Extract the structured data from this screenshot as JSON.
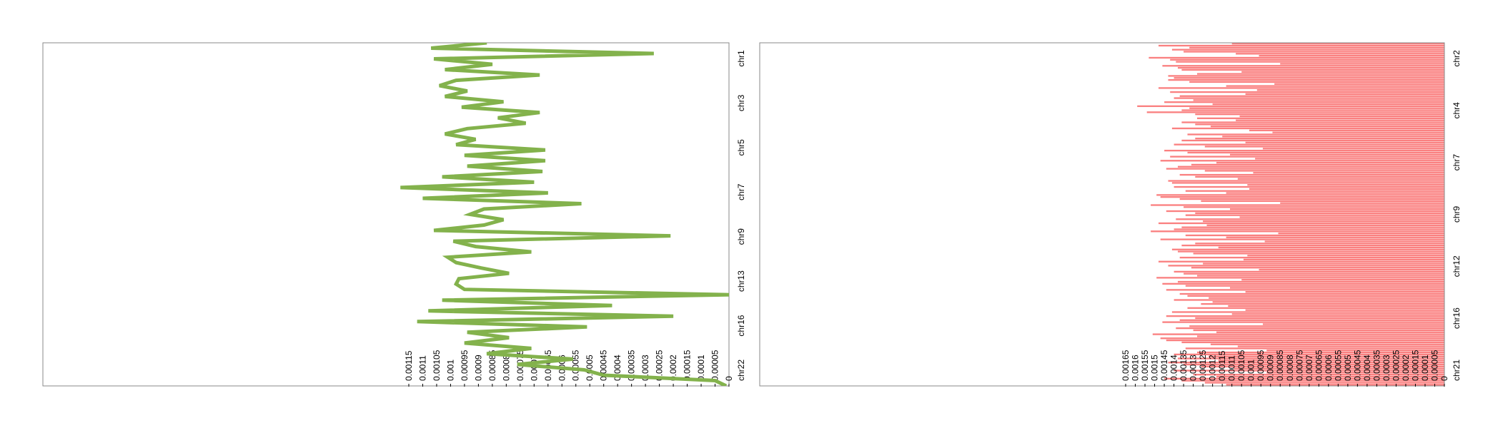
{
  "chart_data": [
    {
      "type": "line",
      "color": "#83b24c",
      "orientation": "vertical",
      "value_axis": {
        "range": [
          0,
          0.00115
        ],
        "ticks": [
          "0.00115",
          "0.0011",
          "0.00105",
          "0.001",
          "0.00095",
          "0.0009",
          "0.00085",
          "0.0008",
          "0.00075",
          "0.0007",
          "0.00065",
          "0.0006",
          "0.00055",
          "0.0005",
          "0.00045",
          "0.0004",
          "0.00035",
          "0.0003",
          "0.00025",
          "0.0002",
          "0.00015",
          "0.0001",
          "0.00005",
          "0"
        ]
      },
      "category_labels": [
        "chr1",
        "chr3",
        "chr5",
        "chr7",
        "chr9",
        "chr13",
        "chr16",
        "chr22"
      ],
      "values": [
        0.00087,
        0.00107,
        0.00027,
        0.00106,
        0.00085,
        0.00102,
        0.00068,
        0.00098,
        0.00104,
        0.00094,
        0.00102,
        0.00081,
        0.00096,
        0.00068,
        0.00083,
        0.00073,
        0.00094,
        0.00102,
        0.00091,
        0.00098,
        0.00066,
        0.00095,
        0.00066,
        0.00094,
        0.00067,
        0.00103,
        0.0007,
        0.00118,
        0.00065,
        0.0011,
        0.00053,
        0.00088,
        0.00093,
        0.00081,
        0.00088,
        0.00106,
        0.00021,
        0.00099,
        0.00091,
        0.00071,
        0.00101,
        0.00098,
        0.00089,
        0.00079,
        0.00097,
        0.00098,
        0.00095,
        0,
        0.00103,
        0.00042,
        0.00108,
        0.0002,
        0.00112,
        0.00051,
        0.00094,
        0.00079,
        0.00095,
        0.00071,
        0.00087,
        0.00056,
        0.00076,
        0.00052,
        0.00045,
        5e-05,
        1e-05
      ]
    },
    {
      "type": "bar",
      "color": "#fa8080",
      "orientation": "horizontal",
      "value_axis": {
        "range": [
          0,
          0.00165
        ],
        "ticks": [
          "0.00165",
          "0.0016",
          "0.00155",
          "0.0015",
          "0.00145",
          "0.0014",
          "0.00135",
          "0.0013",
          "0.00125",
          "0.0012",
          "0.00115",
          "0.0011",
          "0.00105",
          "0.001",
          "0.00095",
          "0.0009",
          "0.00085",
          "0.0008",
          "0.00075",
          "0.0007",
          "0.00065",
          "0.0006",
          "0.00055",
          "0.0005",
          "0.00045",
          "0.0004",
          "0.00035",
          "0.0003",
          "0.00025",
          "0.0002",
          "0.00015",
          "0.0001",
          "0.00005",
          "0"
        ]
      },
      "category_labels": [
        "chr2",
        "chr4",
        "chr7",
        "chr9",
        "chr12",
        "chr16",
        "chr21"
      ],
      "values": [
        0.0011,
        0.00148,
        0.00132,
        0.00141,
        0.00135,
        0.00108,
        0.00096,
        0.00153,
        0.00142,
        0.00139,
        0.00085,
        0.00146,
        0.00138,
        0.00136,
        0.00105,
        0.00128,
        0.00143,
        0.0014,
        0.00143,
        0.00132,
        0.00088,
        0.00113,
        0.00148,
        0.00097,
        0.00142,
        0.00103,
        0.00137,
        0.0014,
        0.0013,
        0.00145,
        0.0012,
        0.00159,
        0.00132,
        0.00136,
        0.00154,
        0.00129,
        0.00106,
        0.00128,
        0.00108,
        0.00136,
        0.00129,
        0.00121,
        0.00141,
        0.00101,
        0.00089,
        0.00133,
        0.00115,
        0.00129,
        0.00136,
        0.00103,
        0.0014,
        0.00124,
        0.00094,
        0.00145,
        0.00133,
        0.00111,
        0.00142,
        0.00098,
        0.00147,
        0.00118,
        0.00131,
        0.00138,
        0.00144,
        0.00124,
        0.00099,
        0.00137,
        0.00129,
        0.00107,
        0.00143,
        0.00141,
        0.00102,
        0.0014,
        0.00101,
        0.00134,
        0.00113,
        0.00149,
        0.00147,
        0.00137,
        0.00126,
        0.00085,
        0.00152,
        0.00135,
        0.00111,
        0.00144,
        0.00129,
        0.00134,
        0.00106,
        0.00139,
        0.00125,
        0.00148,
        0.00123,
        0.00136,
        0.0014,
        0.00152,
        0.00086,
        0.00134,
        0.00113,
        0.00147,
        0.00093,
        0.00129,
        0.00136,
        0.00117,
        0.00141,
        0.00138,
        0.0013,
        0.00102,
        0.00137,
        0.00104,
        0.00148,
        0.00125,
        0.00143,
        0.00131,
        0.00096,
        0.0014,
        0.00135,
        0.00128,
        0.00149,
        0.00105,
        0.00138,
        0.00146,
        0.00134,
        0.00111,
        0.00144,
        0.00103,
        0.00137,
        0.00133,
        0.00122,
        0.0014,
        0.0012,
        0.00126,
        0.00112,
        0.00133,
        0.00103,
        0.00141,
        0.0011,
        0.00144,
        0.00129,
        0.00137,
        0.00146,
        0.00094,
        0.00132,
        0.00139,
        0.0013,
        0.00118,
        0.00151,
        0.00128,
        0.00147,
        0.00144,
        0.00136,
        0.00121,
        0.00107,
        0.00134,
        0.00092,
        0.00128,
        0.0014,
        0.00122,
        0.00138,
        0.00117,
        0.00143,
        0.00135,
        0.00126,
        0.00109,
        0.0014,
        0.00092,
        0.0013,
        0.00118,
        0.00145,
        0.00136,
        0.00124,
        0.00113
      ]
    }
  ]
}
